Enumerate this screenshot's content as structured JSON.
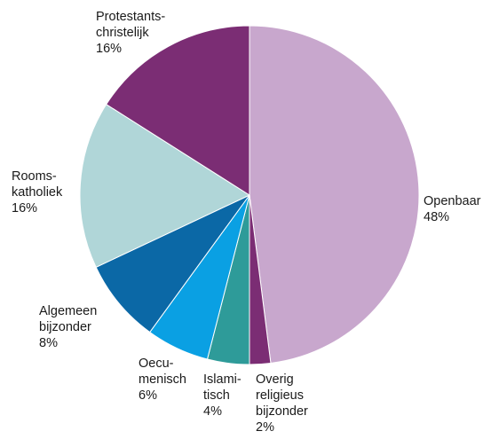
{
  "chart_data": {
    "type": "pie",
    "title": "",
    "start_angle_deg": 0,
    "direction": "clockwise",
    "slices": [
      {
        "label_lines": [
          "Openbaar"
        ],
        "value_label": "48%",
        "value": 48,
        "color": "#c8a7cd"
      },
      {
        "label_lines": [
          "Overig",
          "religieus",
          "bijzonder"
        ],
        "value_label": "2%",
        "value": 2,
        "color": "#7b2d74"
      },
      {
        "label_lines": [
          "Islami-",
          "tisch"
        ],
        "value_label": "4%",
        "value": 4,
        "color": "#2e9b99"
      },
      {
        "label_lines": [
          "Oecu-",
          "menisch"
        ],
        "value_label": "6%",
        "value": 6,
        "color": "#0aa0e3"
      },
      {
        "label_lines": [
          "Algemeen",
          "bijzonder"
        ],
        "value_label": "8%",
        "value": 8,
        "color": "#0b68a6"
      },
      {
        "label_lines": [
          "Rooms-",
          "katholiek"
        ],
        "value_label": "16%",
        "value": 16,
        "color": "#b0d6d8"
      },
      {
        "label_lines": [
          "Protestants-",
          "christelijk"
        ],
        "value_label": "16%",
        "value": 16,
        "color": "#7b2d74"
      }
    ]
  }
}
